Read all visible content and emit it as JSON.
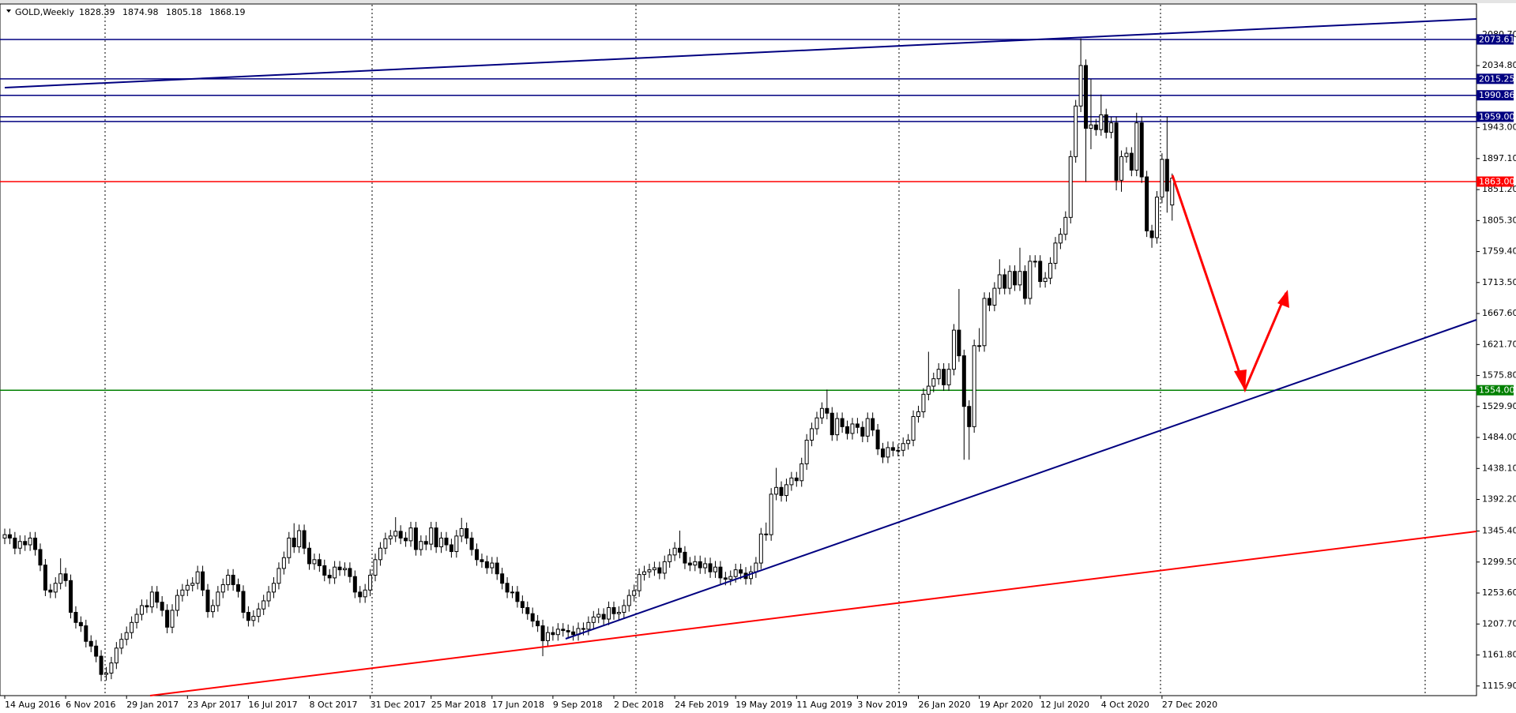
{
  "chart_data": {
    "type": "candlestick",
    "title": "GOLD,Weekly",
    "header_ohlc": [
      1828.39,
      1874.98,
      1805.18,
      1868.19
    ],
    "x_labels": [
      "14 Aug 2016",
      "6 Nov 2016",
      "29 Jan 2017",
      "23 Apr 2017",
      "16 Jul 2017",
      "8 Oct 2017",
      "31 Dec 2017",
      "25 Mar 2018",
      "17 Jun 2018",
      "9 Sep 2018",
      "2 Dec 2018",
      "24 Feb 2019",
      "19 May 2019",
      "11 Aug 2019",
      "3 Nov 2019",
      "26 Jan 2020",
      "19 Apr 2020",
      "12 Jul 2020",
      "4 Oct 2020",
      "27 Dec 2020"
    ],
    "ylim": [
      1101.6,
      2125
    ],
    "yticks": [
      {
        "value": 2080.7,
        "label": "2080.70"
      },
      {
        "value": 2034.8,
        "label": "2034.80"
      },
      {
        "value": 1943,
        "label": "1943.00"
      },
      {
        "value": 1897.1,
        "label": "1897.10"
      },
      {
        "value": 1851.2,
        "label": "1851.20"
      },
      {
        "value": 1805.3,
        "label": "1805.30"
      },
      {
        "value": 1759.4,
        "label": "1759.40"
      },
      {
        "value": 1713.5,
        "label": "1713.50"
      },
      {
        "value": 1667.6,
        "label": "1667.60"
      },
      {
        "value": 1621.7,
        "label": "1621.70"
      },
      {
        "value": 1575.8,
        "label": "1575.80"
      },
      {
        "value": 1529.9,
        "label": "1529.90"
      },
      {
        "value": 1484,
        "label": "1484.00"
      },
      {
        "value": 1438.1,
        "label": "1438.10"
      },
      {
        "value": 1392.2,
        "label": "1392.20"
      },
      {
        "value": 1345.4,
        "label": "1345.40"
      },
      {
        "value": 1299.5,
        "label": "1299.50"
      },
      {
        "value": 1253.6,
        "label": "1253.60"
      },
      {
        "value": 1207.7,
        "label": "1207.70"
      },
      {
        "value": 1161.8,
        "label": "1161.80"
      },
      {
        "value": 1115.9,
        "label": "1115.90"
      }
    ],
    "levels": [
      {
        "value": 2073.61,
        "label": "2073.61",
        "color": "#000080"
      },
      {
        "value": 2015.25,
        "label": "2015.25",
        "color": "#000080"
      },
      {
        "value": 1990.86,
        "label": "1990.86",
        "color": "#000080"
      },
      {
        "value": 1959,
        "label": "1959.00",
        "color": "#000080"
      },
      {
        "value": 1952,
        "color": "#000080"
      },
      {
        "value": 1863,
        "label": "1863.00",
        "color": "#ff0000"
      },
      {
        "value": 1554,
        "label": "1554.00",
        "color": "#008000"
      }
    ],
    "open": [
      1335,
      1340,
      1335,
      1320,
      1330,
      1325,
      1335,
      1318,
      1295,
      1258,
      1255,
      1268,
      1282,
      1272,
      1225,
      1210,
      1205,
      1182,
      1175,
      1160,
      1133,
      1135,
      1150,
      1172,
      1185,
      1195,
      1210,
      1222,
      1235,
      1233,
      1255,
      1240,
      1228,
      1203,
      1228,
      1250,
      1258,
      1265,
      1268,
      1285,
      1258,
      1226,
      1235,
      1255,
      1266,
      1280,
      1266,
      1256,
      1225,
      1213,
      1219,
      1230,
      1242,
      1255,
      1268,
      1290,
      1306,
      1335,
      1322,
      1346,
      1320,
      1297,
      1303,
      1294,
      1280,
      1276,
      1292,
      1288,
      1290,
      1278,
      1255,
      1248,
      1258,
      1280,
      1303,
      1320,
      1334,
      1338,
      1345,
      1335,
      1331,
      1350,
      1318,
      1330,
      1326,
      1350,
      1322,
      1335,
      1325,
      1315,
      1338,
      1349,
      1335,
      1318,
      1303,
      1300,
      1291,
      1298,
      1282,
      1268,
      1255,
      1255,
      1241,
      1232,
      1223,
      1212,
      1205,
      1183,
      1195,
      1192,
      1200,
      1198,
      1196,
      1192,
      1201,
      1200,
      1210,
      1218,
      1222,
      1215,
      1232,
      1223,
      1225,
      1235,
      1250,
      1257,
      1281,
      1285,
      1288,
      1291,
      1283,
      1300,
      1310,
      1320,
      1314,
      1298,
      1295,
      1300,
      1291,
      1297,
      1285,
      1292,
      1276,
      1274,
      1278,
      1288,
      1283,
      1275,
      1285,
      1298,
      1341,
      1340,
      1400,
      1410,
      1398,
      1414,
      1424,
      1420,
      1445,
      1480,
      1497,
      1513,
      1527,
      1520,
      1488,
      1512,
      1500,
      1490,
      1504,
      1499,
      1486,
      1512,
      1495,
      1467,
      1455,
      1469,
      1465,
      1465,
      1475,
      1480,
      1515,
      1522,
      1548,
      1560,
      1571,
      1585,
      1562,
      1585,
      1643,
      1605,
      1530,
      1500,
      1620,
      1620,
      1690,
      1680,
      1705,
      1725,
      1705,
      1730,
      1710,
      1730,
      1690,
      1745,
      1745,
      1715,
      1720,
      1742,
      1772,
      1785,
      1810,
      1900,
      1975,
      2035,
      1942,
      1947,
      1940,
      1962,
      1936,
      1950,
      1865,
      1900,
      1905,
      1880,
      1950,
      1870,
      1790,
      1780,
      1840,
      1896,
      1828.39
    ],
    "high": [
      1349,
      1349,
      1344,
      1339,
      1339,
      1344,
      1344,
      1327,
      1304,
      1267,
      1277,
      1305,
      1291,
      1281,
      1234,
      1219,
      1214,
      1191,
      1184,
      1169,
      1144,
      1159,
      1181,
      1194,
      1204,
      1219,
      1231,
      1244,
      1244,
      1264,
      1264,
      1249,
      1237,
      1237,
      1259,
      1267,
      1274,
      1277,
      1294,
      1294,
      1267,
      1244,
      1264,
      1275,
      1289,
      1289,
      1275,
      1265,
      1234,
      1228,
      1239,
      1251,
      1264,
      1277,
      1299,
      1315,
      1344,
      1357,
      1355,
      1355,
      1329,
      1312,
      1312,
      1303,
      1289,
      1301,
      1301,
      1299,
      1299,
      1287,
      1264,
      1267,
      1289,
      1312,
      1329,
      1343,
      1347,
      1366,
      1354,
      1344,
      1359,
      1359,
      1339,
      1339,
      1359,
      1359,
      1344,
      1344,
      1334,
      1347,
      1365,
      1358,
      1344,
      1327,
      1312,
      1309,
      1307,
      1307,
      1291,
      1277,
      1264,
      1264,
      1250,
      1241,
      1232,
      1221,
      1214,
      1204,
      1204,
      1209,
      1209,
      1207,
      1205,
      1210,
      1210,
      1219,
      1227,
      1231,
      1231,
      1241,
      1241,
      1234,
      1244,
      1259,
      1266,
      1290,
      1294,
      1297,
      1300,
      1300,
      1309,
      1319,
      1329,
      1346,
      1323,
      1307,
      1309,
      1309,
      1306,
      1306,
      1301,
      1301,
      1285,
      1287,
      1297,
      1297,
      1292,
      1294,
      1307,
      1350,
      1358,
      1409,
      1439,
      1419,
      1423,
      1433,
      1433,
      1454,
      1489,
      1506,
      1522,
      1536,
      1555,
      1529,
      1521,
      1521,
      1509,
      1513,
      1513,
      1508,
      1521,
      1521,
      1504,
      1476,
      1478,
      1478,
      1474,
      1484,
      1489,
      1524,
      1531,
      1557,
      1611,
      1580,
      1594,
      1594,
      1594,
      1652,
      1704,
      1614,
      1539,
      1629,
      1646,
      1699,
      1699,
      1714,
      1748,
      1734,
      1739,
      1739,
      1765,
      1739,
      1754,
      1754,
      1754,
      1729,
      1751,
      1781,
      1794,
      1819,
      1909,
      1984,
      2075,
      2044,
      2015,
      1956,
      1992,
      1971,
      1959,
      1959,
      1909,
      1914,
      1914,
      1965,
      1959,
      1879,
      1799,
      1849,
      1905,
      1959,
      1874.98
    ],
    "low": [
      1326,
      1326,
      1311,
      1311,
      1316,
      1316,
      1309,
      1286,
      1249,
      1246,
      1246,
      1259,
      1263,
      1216,
      1201,
      1196,
      1173,
      1166,
      1151,
      1123,
      1124,
      1126,
      1141,
      1163,
      1176,
      1186,
      1201,
      1213,
      1224,
      1224,
      1231,
      1219,
      1194,
      1194,
      1219,
      1241,
      1249,
      1256,
      1259,
      1249,
      1217,
      1217,
      1226,
      1246,
      1257,
      1257,
      1247,
      1216,
      1204,
      1204,
      1210,
      1221,
      1233,
      1246,
      1259,
      1281,
      1297,
      1313,
      1313,
      1311,
      1288,
      1288,
      1285,
      1271,
      1267,
      1267,
      1279,
      1279,
      1269,
      1246,
      1239,
      1239,
      1249,
      1271,
      1294,
      1311,
      1325,
      1329,
      1326,
      1322,
      1322,
      1309,
      1309,
      1317,
      1317,
      1313,
      1313,
      1316,
      1306,
      1306,
      1329,
      1326,
      1309,
      1294,
      1291,
      1282,
      1282,
      1273,
      1259,
      1246,
      1246,
      1232,
      1223,
      1214,
      1203,
      1196,
      1160,
      1174,
      1183,
      1183,
      1189,
      1187,
      1183,
      1183,
      1191,
      1191,
      1201,
      1209,
      1206,
      1206,
      1214,
      1214,
      1216,
      1226,
      1241,
      1248,
      1272,
      1276,
      1279,
      1274,
      1274,
      1291,
      1301,
      1305,
      1289,
      1286,
      1286,
      1282,
      1282,
      1276,
      1276,
      1267,
      1265,
      1265,
      1269,
      1274,
      1266,
      1266,
      1276,
      1289,
      1331,
      1331,
      1391,
      1389,
      1389,
      1405,
      1411,
      1411,
      1436,
      1471,
      1488,
      1504,
      1511,
      1479,
      1479,
      1491,
      1481,
      1481,
      1490,
      1477,
      1477,
      1486,
      1458,
      1446,
      1446,
      1456,
      1456,
      1456,
      1466,
      1471,
      1506,
      1513,
      1539,
      1551,
      1562,
      1553,
      1553,
      1576,
      1596,
      1451,
      1451,
      1491,
      1611,
      1611,
      1671,
      1671,
      1696,
      1696,
      1696,
      1701,
      1701,
      1681,
      1681,
      1736,
      1706,
      1706,
      1711,
      1733,
      1763,
      1776,
      1801,
      1891,
      1966,
      1863,
      1911,
      1931,
      1931,
      1927,
      1927,
      1850,
      1848,
      1891,
      1871,
      1871,
      1861,
      1781,
      1765,
      1771,
      1831,
      1817,
      1805.18
    ],
    "close": [
      1340,
      1335,
      1320,
      1330,
      1325,
      1335,
      1318,
      1295,
      1258,
      1255,
      1268,
      1282,
      1272,
      1225,
      1210,
      1205,
      1182,
      1175,
      1160,
      1133,
      1135,
      1150,
      1172,
      1185,
      1195,
      1210,
      1222,
      1235,
      1233,
      1255,
      1240,
      1228,
      1203,
      1228,
      1250,
      1258,
      1265,
      1268,
      1285,
      1258,
      1226,
      1235,
      1255,
      1266,
      1280,
      1266,
      1256,
      1225,
      1213,
      1219,
      1230,
      1242,
      1255,
      1268,
      1290,
      1306,
      1335,
      1322,
      1346,
      1320,
      1297,
      1303,
      1294,
      1280,
      1276,
      1292,
      1288,
      1290,
      1278,
      1255,
      1248,
      1258,
      1280,
      1303,
      1320,
      1334,
      1338,
      1345,
      1335,
      1331,
      1350,
      1318,
      1330,
      1326,
      1350,
      1322,
      1335,
      1325,
      1315,
      1338,
      1349,
      1335,
      1318,
      1303,
      1300,
      1291,
      1298,
      1282,
      1268,
      1255,
      1255,
      1241,
      1232,
      1223,
      1212,
      1205,
      1183,
      1195,
      1192,
      1200,
      1198,
      1196,
      1192,
      1201,
      1200,
      1210,
      1218,
      1222,
      1215,
      1232,
      1223,
      1225,
      1235,
      1250,
      1257,
      1281,
      1285,
      1288,
      1291,
      1283,
      1300,
      1310,
      1320,
      1314,
      1298,
      1295,
      1300,
      1291,
      1297,
      1285,
      1292,
      1276,
      1274,
      1278,
      1288,
      1283,
      1275,
      1285,
      1298,
      1341,
      1340,
      1400,
      1410,
      1398,
      1414,
      1424,
      1420,
      1445,
      1480,
      1497,
      1513,
      1527,
      1520,
      1488,
      1512,
      1500,
      1490,
      1504,
      1499,
      1486,
      1512,
      1495,
      1467,
      1455,
      1469,
      1465,
      1465,
      1475,
      1480,
      1515,
      1522,
      1548,
      1560,
      1571,
      1585,
      1562,
      1585,
      1643,
      1605,
      1530,
      1500,
      1620,
      1620,
      1690,
      1680,
      1705,
      1725,
      1705,
      1730,
      1710,
      1730,
      1690,
      1745,
      1745,
      1715,
      1720,
      1742,
      1772,
      1785,
      1810,
      1900,
      1975,
      2035,
      1942,
      1947,
      1940,
      1962,
      1936,
      1950,
      1865,
      1900,
      1905,
      1880,
      1950,
      1870,
      1790,
      1780,
      1840,
      1896,
      1849,
      1868.19
    ]
  }
}
